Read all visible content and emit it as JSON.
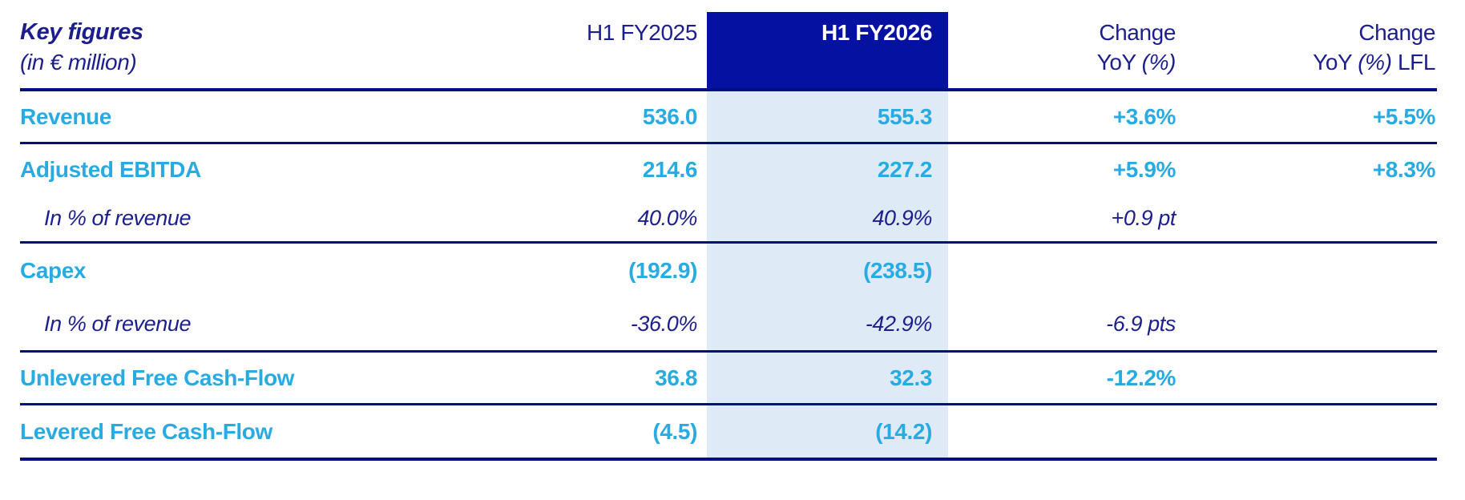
{
  "colors": {
    "navy_text": "#1b1e8c",
    "navy_block": "#0511a0",
    "rule": "#02107e",
    "cyan": "#29abe2",
    "highlight_bg": "#deeaf6"
  },
  "header": {
    "title": "Key figures",
    "subtitle": "(in € million)",
    "col_prev": "H1 FY2025",
    "col_curr": "H1 FY2026",
    "change": {
      "line1": "Change",
      "yoy": "YoY ",
      "pct": "(%)"
    },
    "change_lfl": {
      "line1": "Change",
      "yoy": "YoY ",
      "pct": "(%)",
      "suffix": " LFL"
    }
  },
  "rows": [
    {
      "label": "Revenue",
      "prev": "536.0",
      "curr": "555.3",
      "change": "+3.6%",
      "lfl": "+5.5%"
    },
    {
      "label": "Adjusted EBITDA",
      "prev": "214.6",
      "curr": "227.2",
      "change": "+5.9%",
      "lfl": "+8.3%"
    },
    {
      "label": "In % of revenue",
      "prev": "40.0%",
      "curr": "40.9%",
      "change": "+0.9 pt",
      "lfl": ""
    },
    {
      "label": "Capex",
      "prev": "(192.9)",
      "curr": "(238.5)",
      "change": "",
      "lfl": ""
    },
    {
      "label": "In % of revenue",
      "prev": "-36.0%",
      "curr": "-42.9%",
      "change": "-6.9 pts",
      "lfl": ""
    },
    {
      "label": "Unlevered Free Cash-Flow",
      "prev": "36.8",
      "curr": "32.3",
      "change": "-12.2%",
      "lfl": ""
    },
    {
      "label": "Levered Free Cash-Flow",
      "prev": "(4.5)",
      "curr": "(14.2)",
      "change": "",
      "lfl": ""
    }
  ]
}
